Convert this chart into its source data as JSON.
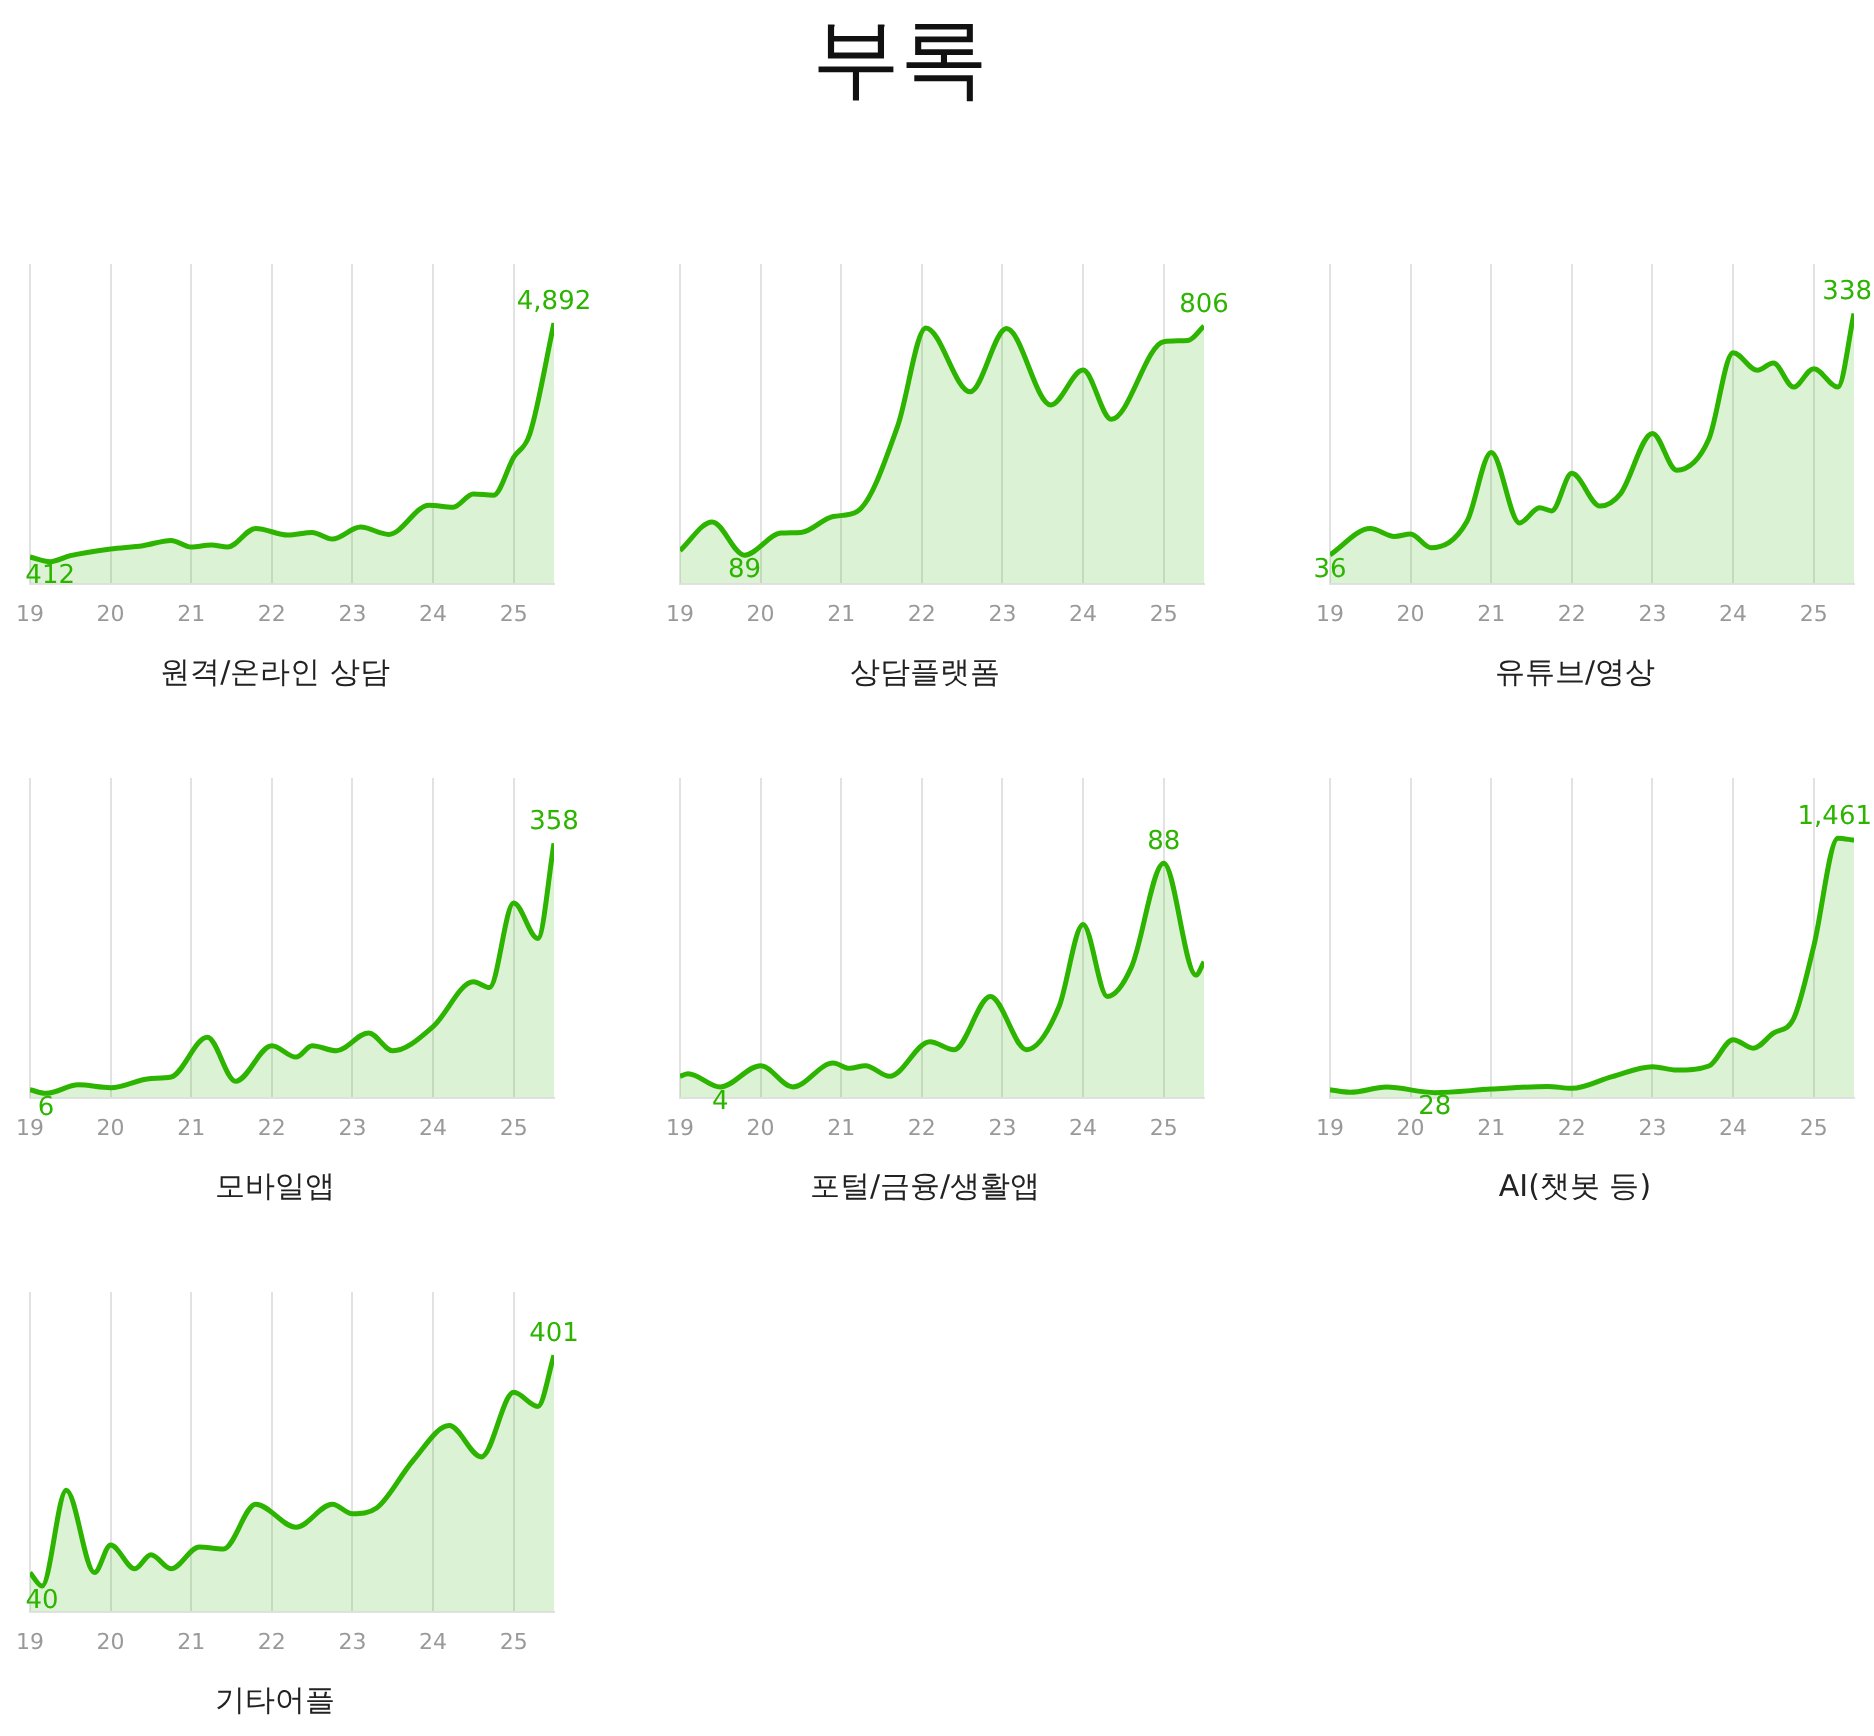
{
  "chart_data": [
    {
      "type": "area",
      "title": "원격/온라인 상담",
      "annotations": [
        "부록"
      ],
      "color": "#2db400",
      "xlim": [
        19,
        25.5
      ],
      "xticks": [
        19,
        20,
        21,
        22,
        23,
        24,
        25
      ],
      "grid": "x",
      "tick_labels": "x",
      "x": [
        19,
        19.25,
        19.5,
        20,
        20.4,
        20.75,
        21,
        21.25,
        21.45,
        21.8,
        22.2,
        22.5,
        22.75,
        23.1,
        23.45,
        23.95,
        24.25,
        24.5,
        24.75,
        25,
        25.2,
        25.5
      ],
      "values": [
        500,
        412,
        524,
        650,
        711,
        811,
        686,
        724,
        686,
        1036,
        911,
        961,
        836,
        1061,
        924,
        1473,
        1435,
        1684,
        1660,
        2371,
        2808,
        4892
      ],
      "value_labels": [
        null,
        "412",
        null,
        null,
        null,
        null,
        null,
        null,
        null,
        null,
        null,
        null,
        null,
        null,
        null,
        null,
        null,
        null,
        null,
        null,
        null,
        "4,892"
      ]
    },
    {
      "type": "area",
      "title": "상담플랫폼",
      "color": "#2db400",
      "xlim": [
        19,
        25.5
      ],
      "xticks": [
        19,
        20,
        21,
        22,
        23,
        24,
        25
      ],
      "grid": "x",
      "tick_labels": "x",
      "x": [
        19,
        19.4,
        19.8,
        20.25,
        20.5,
        20.9,
        21.2,
        21.7,
        22.05,
        22.6,
        23.05,
        23.6,
        24,
        24.35,
        25,
        25.3,
        25.5
      ],
      "values": [
        103,
        193,
        89,
        158,
        160,
        210,
        226,
        493,
        800,
        600,
        798,
        559,
        668,
        514,
        757,
        761,
        806
      ],
      "value_labels": [
        null,
        null,
        "89",
        null,
        null,
        null,
        null,
        null,
        null,
        null,
        null,
        null,
        null,
        null,
        null,
        null,
        "806"
      ]
    },
    {
      "type": "area",
      "title": "유튜브/영상",
      "color": "#2db400",
      "xlim": [
        19,
        25.5
      ],
      "xticks": [
        19,
        20,
        21,
        22,
        23,
        24,
        25
      ],
      "grid": "x",
      "tick_labels": "x",
      "x": [
        19,
        19.5,
        19.8,
        20,
        20.25,
        20.7,
        21,
        21.35,
        21.6,
        21.75,
        22,
        22.35,
        22.6,
        23,
        23.3,
        23.7,
        24,
        24.3,
        24.5,
        24.75,
        25,
        25.3,
        25.5
      ],
      "values": [
        36,
        69,
        59,
        62,
        45,
        78,
        164,
        76,
        95,
        91,
        138,
        97,
        112,
        188,
        142,
        181,
        289,
        267,
        276,
        246,
        269,
        246,
        338
      ],
      "value_labels": [
        "36",
        null,
        null,
        null,
        null,
        null,
        null,
        null,
        null,
        null,
        null,
        null,
        null,
        null,
        null,
        null,
        null,
        null,
        null,
        null,
        null,
        null,
        "338"
      ]
    },
    {
      "type": "area",
      "title": "모바일앱",
      "color": "#2db400",
      "xlim": [
        19,
        25.5
      ],
      "xticks": [
        19,
        20,
        21,
        22,
        23,
        24,
        25
      ],
      "grid": "x",
      "tick_labels": "x",
      "x": [
        19,
        19.2,
        19.6,
        20,
        20.5,
        20.75,
        21.2,
        21.55,
        22,
        22.3,
        22.5,
        22.8,
        23.2,
        23.5,
        24,
        24.5,
        24.7,
        25,
        25.3,
        25.5
      ],
      "values": [
        11,
        6,
        18,
        14,
        27,
        29,
        85,
        23,
        73,
        57,
        73,
        66,
        91,
        66,
        100,
        163,
        155,
        274,
        224,
        358
      ],
      "value_labels": [
        null,
        "6",
        null,
        null,
        null,
        null,
        null,
        null,
        null,
        null,
        null,
        null,
        null,
        null,
        null,
        null,
        null,
        null,
        null,
        "358"
      ]
    },
    {
      "type": "area",
      "title": "포털/금융/생활앱",
      "color": "#2db400",
      "xlim": [
        19,
        25.5
      ],
      "xticks": [
        19,
        20,
        21,
        22,
        23,
        24,
        25
      ],
      "grid": "x",
      "tick_labels": "x",
      "x": [
        19,
        19.1,
        19.5,
        20,
        20.4,
        20.9,
        21.1,
        21.3,
        21.6,
        22.1,
        22.4,
        22.85,
        23.3,
        23.7,
        24,
        24.3,
        24.6,
        25,
        25.4,
        25.5
      ],
      "values": [
        8,
        9,
        4,
        12,
        4,
        13,
        11,
        12,
        8,
        21,
        18,
        38,
        18,
        34,
        65,
        38,
        49,
        88,
        46,
        51
      ],
      "value_labels": [
        null,
        null,
        "4",
        null,
        null,
        null,
        null,
        null,
        null,
        null,
        null,
        null,
        null,
        null,
        null,
        null,
        null,
        "88",
        null,
        null
      ]
    },
    {
      "type": "area",
      "title": "AI(챗봇 등)",
      "color": "#2db400",
      "xlim": [
        19,
        25.5
      ],
      "xticks": [
        19,
        20,
        21,
        22,
        23,
        24,
        25
      ],
      "grid": "x",
      "tick_labels": "x",
      "x": [
        19,
        19.25,
        19.7,
        20.3,
        21,
        21.7,
        22,
        22.5,
        23,
        23.3,
        23.7,
        24,
        24.25,
        24.5,
        24.75,
        25,
        25.3,
        25.5
      ],
      "values": [
        44,
        30,
        59,
        28,
        48,
        63,
        52,
        118,
        174,
        155,
        178,
        326,
        278,
        363,
        444,
        851,
        1461,
        1450
      ],
      "value_labels": [
        null,
        null,
        null,
        "28",
        null,
        null,
        null,
        null,
        null,
        null,
        null,
        null,
        null,
        null,
        null,
        null,
        "1,461",
        null
      ]
    },
    {
      "type": "area",
      "title": "기타어플",
      "color": "#2db400",
      "xlim": [
        19,
        25.5
      ],
      "xticks": [
        19,
        20,
        21,
        22,
        23,
        24,
        25
      ],
      "grid": "x",
      "tick_labels": "x",
      "x": [
        19,
        19.15,
        19.45,
        19.8,
        20,
        20.3,
        20.5,
        20.75,
        21.1,
        21.4,
        21.8,
        22.3,
        22.75,
        23,
        23.3,
        23.75,
        24.2,
        24.6,
        25,
        25.3,
        25.5
      ],
      "values": [
        61,
        40,
        190,
        61,
        104,
        67,
        89,
        67,
        101,
        98,
        168,
        132,
        168,
        153,
        162,
        236,
        291,
        242,
        343,
        321,
        401
      ],
      "value_labels": [
        null,
        "40",
        null,
        null,
        null,
        null,
        null,
        null,
        null,
        null,
        null,
        null,
        null,
        null,
        null,
        null,
        null,
        null,
        null,
        null,
        "401"
      ]
    }
  ]
}
